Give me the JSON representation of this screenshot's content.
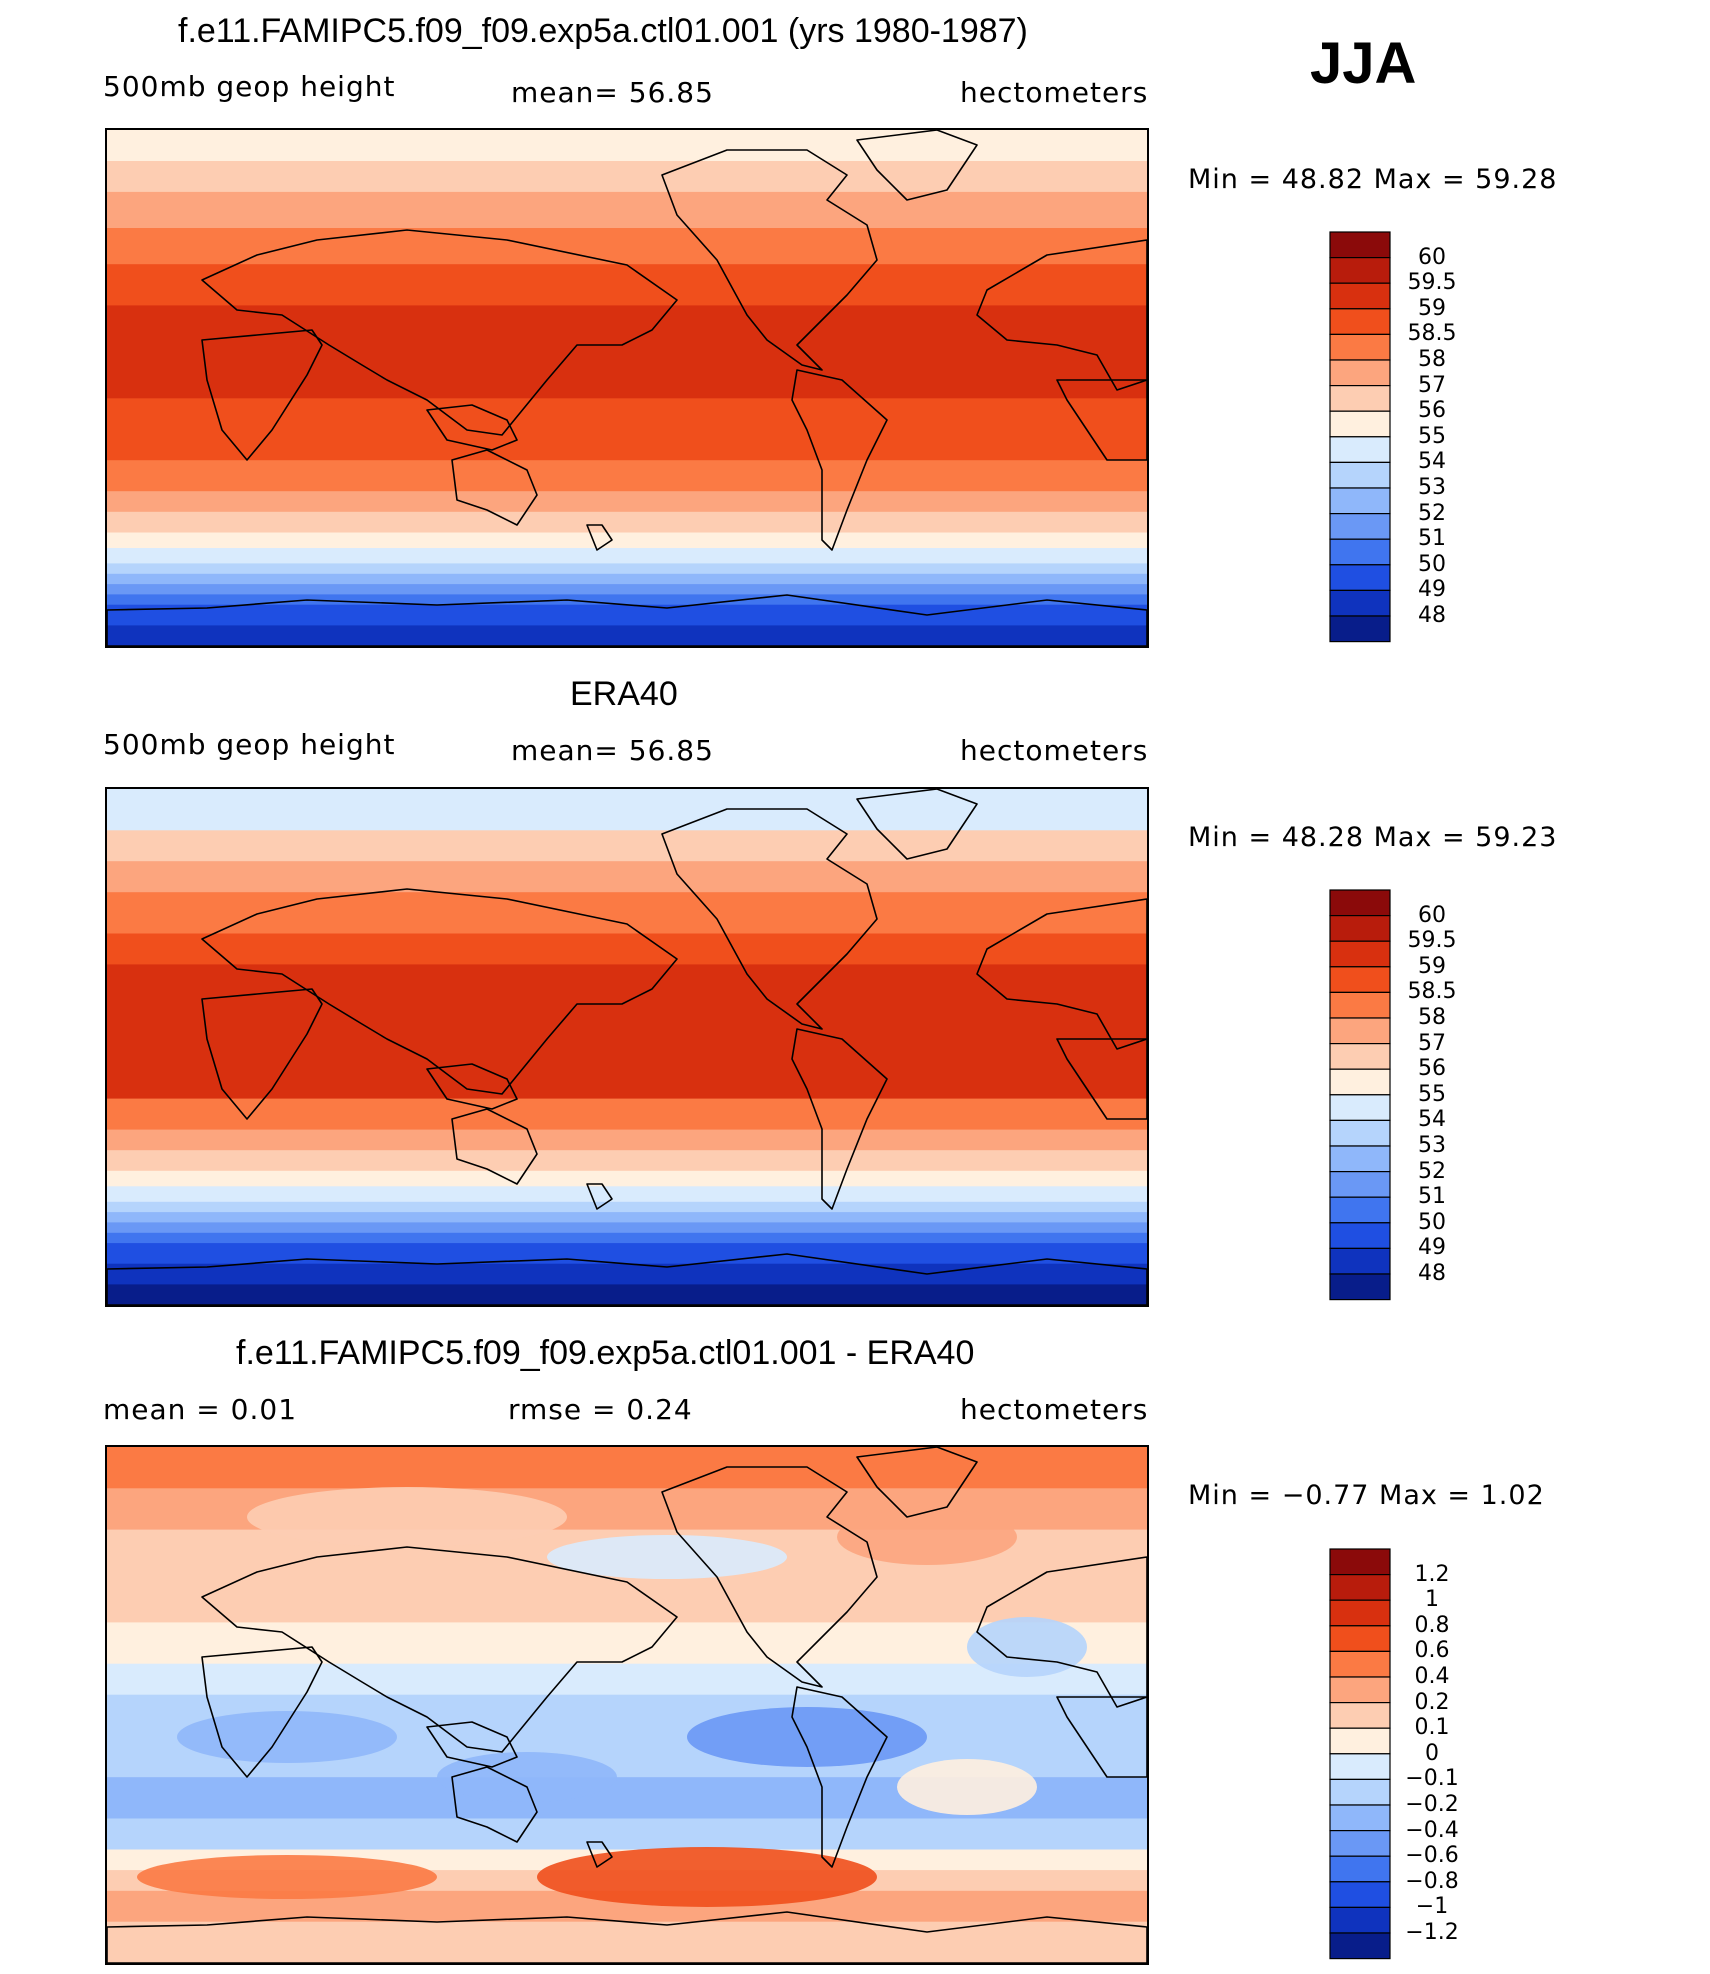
{
  "season": "JJA",
  "chart_data": [
    {
      "type": "heatmap",
      "title": "f.e11.FAMIPC5.f09_f09.exp5a.ctl01.001 (yrs 1980-1987)",
      "variable": "500mb geop height",
      "stat_text": "mean=   56.85",
      "mean": 56.85,
      "units": "hectometers",
      "minmax_text": "Min =   48.82  Max =   59.28",
      "min": 48.82,
      "max": 59.28,
      "levels": [
        "60",
        "59.5",
        "59",
        "58.5",
        "58",
        "57",
        "56",
        "55",
        "54",
        "53",
        "52",
        "51",
        "50",
        "49",
        "48"
      ],
      "colors": [
        "#8b0a0a",
        "#b81c0c",
        "#d8300f",
        "#f04f1c",
        "#fb7a44",
        "#fca57e",
        "#fdcdb2",
        "#fff0df",
        "#d9ebfd",
        "#b5d4fc",
        "#8fb7fa",
        "#6a98f5",
        "#4075ef",
        "#1f4fe2",
        "#0f33be",
        "#081d8a"
      ],
      "bands": [
        [
          0,
          6,
          7
        ],
        [
          6,
          12,
          6
        ],
        [
          12,
          19,
          5
        ],
        [
          19,
          26,
          4
        ],
        [
          26,
          34,
          3
        ],
        [
          34,
          52,
          2
        ],
        [
          52,
          64,
          3
        ],
        [
          64,
          70,
          4
        ],
        [
          70,
          74,
          5
        ],
        [
          74,
          78,
          6
        ],
        [
          78,
          81,
          7
        ],
        [
          81,
          84,
          8
        ],
        [
          84,
          86,
          9
        ],
        [
          86,
          88,
          10
        ],
        [
          88,
          90,
          11
        ],
        [
          90,
          92,
          12
        ],
        [
          92,
          96,
          13
        ],
        [
          96,
          100,
          14
        ]
      ]
    },
    {
      "type": "heatmap",
      "title": "ERA40",
      "variable": "500mb geop height",
      "stat_text": "mean=   56.85",
      "mean": 56.85,
      "units": "hectometers",
      "minmax_text": "Min =   48.28  Max =   59.23",
      "min": 48.28,
      "max": 59.23,
      "levels": [
        "60",
        "59.5",
        "59",
        "58.5",
        "58",
        "57",
        "56",
        "55",
        "54",
        "53",
        "52",
        "51",
        "50",
        "49",
        "48"
      ],
      "colors": [
        "#8b0a0a",
        "#b81c0c",
        "#d8300f",
        "#f04f1c",
        "#fb7a44",
        "#fca57e",
        "#fdcdb2",
        "#fff0df",
        "#d9ebfd",
        "#b5d4fc",
        "#8fb7fa",
        "#6a98f5",
        "#4075ef",
        "#1f4fe2",
        "#0f33be",
        "#081d8a"
      ],
      "bands": [
        [
          0,
          8,
          8
        ],
        [
          8,
          14,
          6
        ],
        [
          14,
          20,
          5
        ],
        [
          20,
          28,
          4
        ],
        [
          28,
          34,
          3
        ],
        [
          34,
          60,
          2
        ],
        [
          60,
          66,
          4
        ],
        [
          66,
          70,
          5
        ],
        [
          70,
          74,
          6
        ],
        [
          74,
          77,
          7
        ],
        [
          77,
          80,
          8
        ],
        [
          80,
          82,
          9
        ],
        [
          82,
          84,
          10
        ],
        [
          84,
          86,
          11
        ],
        [
          86,
          88,
          12
        ],
        [
          88,
          92,
          13
        ],
        [
          92,
          96,
          14
        ],
        [
          96,
          100,
          15
        ]
      ]
    },
    {
      "type": "heatmap",
      "title": "f.e11.FAMIPC5.f09_f09.exp5a.ctl01.001 - ERA40",
      "variable": "",
      "stat_text": "mean =     0.01",
      "mean": 0.01,
      "rmse_text": "rmse =     0.24",
      "rmse": 0.24,
      "units": "hectometers",
      "minmax_text": "Min =   −0.77  Max =     1.02",
      "min": -0.77,
      "max": 1.02,
      "levels": [
        "1.2",
        "1",
        "0.8",
        "0.6",
        "0.4",
        "0.2",
        "0.1",
        "0",
        "−0.1",
        "−0.2",
        "−0.4",
        "−0.6",
        "−0.8",
        "−1",
        "−1.2"
      ],
      "colors": [
        "#8b0a0a",
        "#b81c0c",
        "#d8300f",
        "#f04f1c",
        "#fb7a44",
        "#fca57e",
        "#fdcdb2",
        "#fff0df",
        "#d9ebfd",
        "#b5d4fc",
        "#8fb7fa",
        "#6a98f5",
        "#4075ef",
        "#1f4fe2",
        "#0f33be",
        "#081d8a"
      ],
      "bands": [
        [
          0,
          8,
          4
        ],
        [
          8,
          16,
          5
        ],
        [
          16,
          34,
          6
        ],
        [
          34,
          42,
          7
        ],
        [
          42,
          48,
          8
        ],
        [
          48,
          64,
          9
        ],
        [
          64,
          72,
          10
        ],
        [
          72,
          78,
          9
        ],
        [
          78,
          82,
          7
        ],
        [
          82,
          86,
          6
        ],
        [
          86,
          92,
          5
        ],
        [
          92,
          100,
          6
        ]
      ]
    }
  ]
}
